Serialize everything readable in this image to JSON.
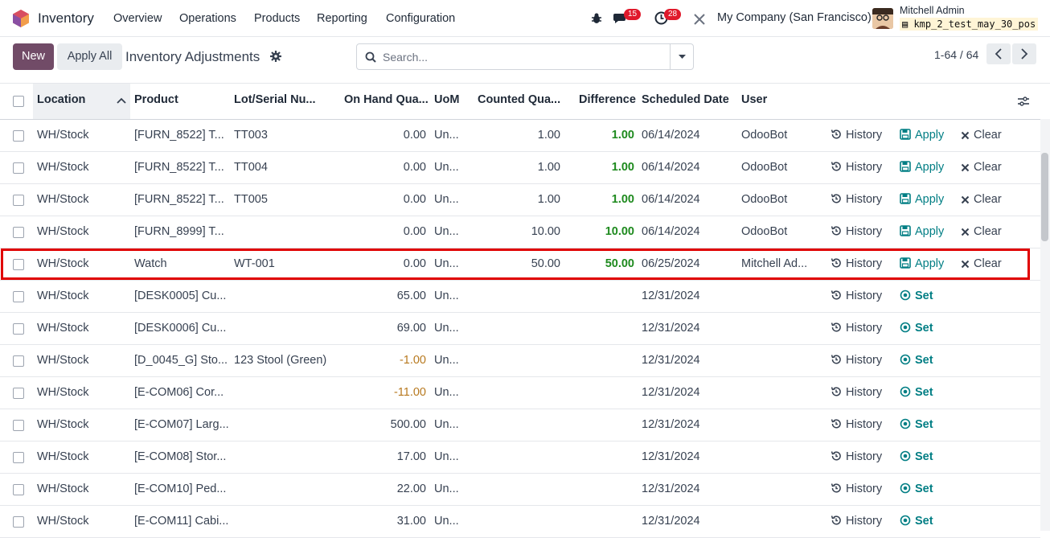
{
  "navbar": {
    "app_name": "Inventory",
    "menu": [
      "Overview",
      "Operations",
      "Products",
      "Reporting",
      "Configuration"
    ],
    "messages_count": "15",
    "activities_count": "28",
    "company": "My Company (San Francisco)",
    "user": "Mitchell Admin",
    "database": "kmp_2_test_may_30_pos"
  },
  "control": {
    "new_label": "New",
    "apply_all_label": "Apply All",
    "title": "Inventory Adjustments",
    "search_placeholder": "Search...",
    "pager": "1-64 / 64"
  },
  "columns": {
    "location": "Location",
    "product": "Product",
    "lot": "Lot/Serial Nu...",
    "on_hand": "On Hand Qua...",
    "uom": "UoM",
    "counted": "Counted Qua...",
    "difference": "Difference",
    "date": "Scheduled Date",
    "user": "User"
  },
  "actions": {
    "history": "History",
    "apply": "Apply",
    "clear": "Clear",
    "set": "Set"
  },
  "rows": [
    {
      "location": "WH/Stock",
      "product": "[FURN_8522] T...",
      "lot": "TT003",
      "on_hand": "0.00",
      "uom": "Un...",
      "counted": "1.00",
      "difference": "1.00",
      "date": "06/14/2024",
      "user": "OdooBot",
      "mode": "apply"
    },
    {
      "location": "WH/Stock",
      "product": "[FURN_8522] T...",
      "lot": "TT004",
      "on_hand": "0.00",
      "uom": "Un...",
      "counted": "1.00",
      "difference": "1.00",
      "date": "06/14/2024",
      "user": "OdooBot",
      "mode": "apply"
    },
    {
      "location": "WH/Stock",
      "product": "[FURN_8522] T...",
      "lot": "TT005",
      "on_hand": "0.00",
      "uom": "Un...",
      "counted": "1.00",
      "difference": "1.00",
      "date": "06/14/2024",
      "user": "OdooBot",
      "mode": "apply"
    },
    {
      "location": "WH/Stock",
      "product": "[FURN_8999] T...",
      "lot": "",
      "on_hand": "0.00",
      "uom": "Un...",
      "counted": "10.00",
      "difference": "10.00",
      "date": "06/14/2024",
      "user": "OdooBot",
      "mode": "apply"
    },
    {
      "location": "WH/Stock",
      "product": "Watch",
      "lot": "WT-001",
      "on_hand": "0.00",
      "uom": "Un...",
      "counted": "50.00",
      "difference": "50.00",
      "date": "06/25/2024",
      "user": "Mitchell Ad...",
      "mode": "apply"
    },
    {
      "location": "WH/Stock",
      "product": "[DESK0005] Cu...",
      "lot": "",
      "on_hand": "65.00",
      "uom": "Un...",
      "counted": "",
      "difference": "",
      "date": "12/31/2024",
      "user": "",
      "mode": "set"
    },
    {
      "location": "WH/Stock",
      "product": "[DESK0006] Cu...",
      "lot": "",
      "on_hand": "69.00",
      "uom": "Un...",
      "counted": "",
      "difference": "",
      "date": "12/31/2024",
      "user": "",
      "mode": "set"
    },
    {
      "location": "WH/Stock",
      "product": "[D_0045_G] Sto...",
      "lot": "123 Stool (Green)",
      "on_hand": "-1.00",
      "uom": "Un...",
      "counted": "",
      "difference": "",
      "date": "12/31/2024",
      "user": "",
      "mode": "set"
    },
    {
      "location": "WH/Stock",
      "product": "[E-COM06] Cor...",
      "lot": "",
      "on_hand": "-11.00",
      "uom": "Un...",
      "counted": "",
      "difference": "",
      "date": "12/31/2024",
      "user": "",
      "mode": "set"
    },
    {
      "location": "WH/Stock",
      "product": "[E-COM07] Larg...",
      "lot": "",
      "on_hand": "500.00",
      "uom": "Un...",
      "counted": "",
      "difference": "",
      "date": "12/31/2024",
      "user": "",
      "mode": "set"
    },
    {
      "location": "WH/Stock",
      "product": "[E-COM08] Stor...",
      "lot": "",
      "on_hand": "17.00",
      "uom": "Un...",
      "counted": "",
      "difference": "",
      "date": "12/31/2024",
      "user": "",
      "mode": "set"
    },
    {
      "location": "WH/Stock",
      "product": "[E-COM10] Ped...",
      "lot": "",
      "on_hand": "22.00",
      "uom": "Un...",
      "counted": "",
      "difference": "",
      "date": "12/31/2024",
      "user": "",
      "mode": "set"
    },
    {
      "location": "WH/Stock",
      "product": "[E-COM11] Cabi...",
      "lot": "",
      "on_hand": "31.00",
      "uom": "Un...",
      "counted": "",
      "difference": "",
      "date": "12/31/2024",
      "user": "",
      "mode": "set"
    }
  ],
  "colors": {
    "brand": "#714b67",
    "positive": "#1e8a1e",
    "negative": "#b7791f",
    "action_teal": "#017e84",
    "highlight": "#e00000"
  }
}
